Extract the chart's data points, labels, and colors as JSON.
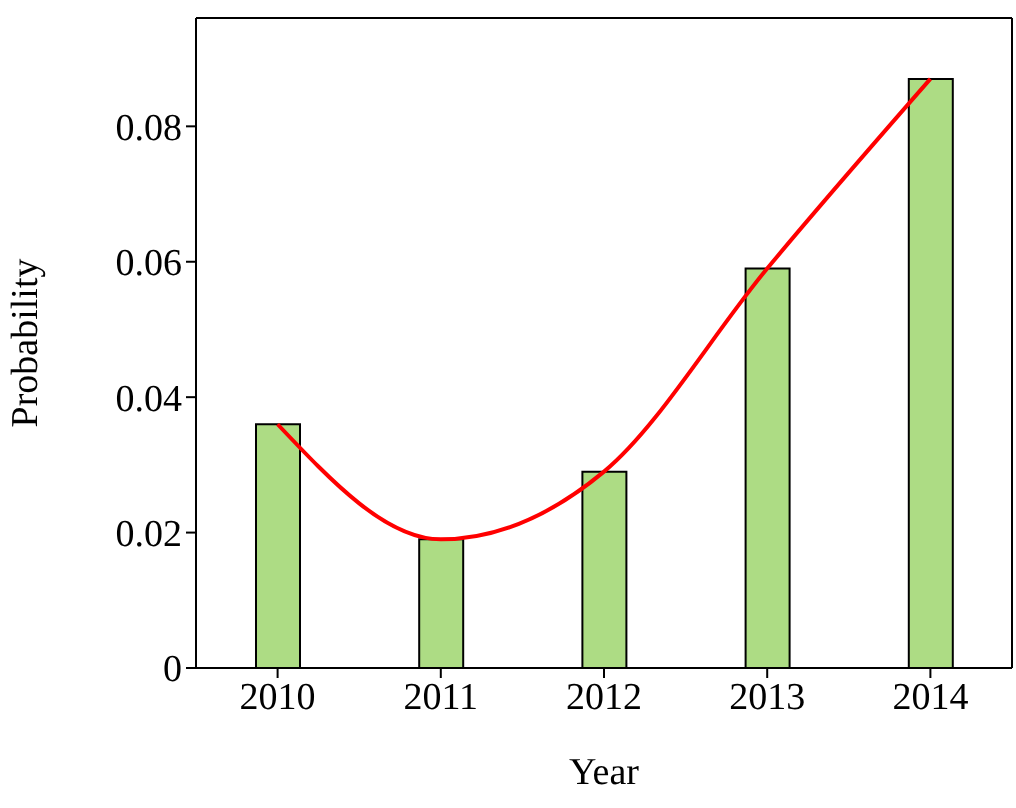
{
  "chart_data": {
    "type": "bar",
    "xlabel": "Year",
    "ylabel": "Probability",
    "categories": [
      "2010",
      "2011",
      "2012",
      "2013",
      "2014"
    ],
    "series": [
      {
        "color": "#addc84",
        "values": [
          0.036,
          0.019,
          0.029,
          0.059,
          0.087
        ]
      },
      {
        "type": "line",
        "color": "#ff0000",
        "values": [
          0.036,
          0.019,
          0.029,
          0.059,
          0.087
        ]
      }
    ],
    "ylim": [
      0,
      0.096
    ],
    "yticks": [
      0,
      0.02,
      0.04,
      0.06,
      0.08
    ],
    "grid": false,
    "legend": false,
    "marker": "none",
    "line_style": "solid"
  }
}
